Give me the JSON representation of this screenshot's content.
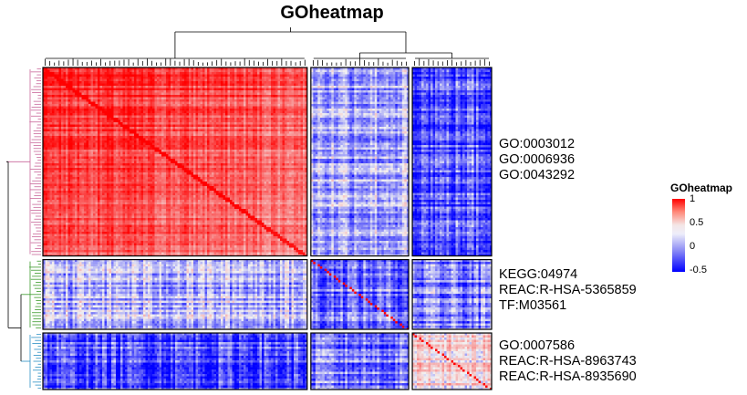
{
  "chart_data": {
    "type": "heatmap",
    "title": "GOheatmap",
    "legend": {
      "title": "GOheatmap",
      "ticks": [
        1,
        0.5,
        0,
        -0.5
      ],
      "range": [
        -0.6,
        1.05
      ],
      "colors": {
        "high": "#ff0000",
        "mid": "#f2f2f2",
        "low": "#0000ff"
      },
      "placement": "right"
    },
    "groups": [
      {
        "labels": [
          "GO:0003012",
          "GO:0006936",
          "GO:0043292"
        ],
        "size": 100,
        "dendrogram_color": "#c9679a",
        "within_mean": 0.6
      },
      {
        "labels": [
          "KEGG:04974",
          "REAC:R-HSA-5365859",
          "TF:M03561"
        ],
        "size": 37,
        "dendrogram_color": "#3a9a2a",
        "within_mean": -0.3
      },
      {
        "labels": [
          "GO:0007586",
          "REAC:R-HSA-8963743",
          "REAC:R-HSA-8935690"
        ],
        "size": 30,
        "dendrogram_color": "#2a8fc4",
        "within_mean": 0.1
      }
    ],
    "block_means": [
      [
        0.6,
        -0.15,
        -0.4
      ],
      [
        -0.15,
        -0.3,
        -0.3
      ],
      [
        -0.4,
        -0.3,
        0.1
      ]
    ],
    "diagonal": 1
  },
  "labels": {
    "g1": [
      "GO:0003012",
      "GO:0006936",
      "GO:0043292"
    ],
    "g2": [
      "KEGG:04974",
      "REAC:R-HSA-5365859",
      "TF:M03561"
    ],
    "g3": [
      "GO:0007586",
      "REAC:R-HSA-8963743",
      "REAC:R-HSA-8935690"
    ]
  }
}
